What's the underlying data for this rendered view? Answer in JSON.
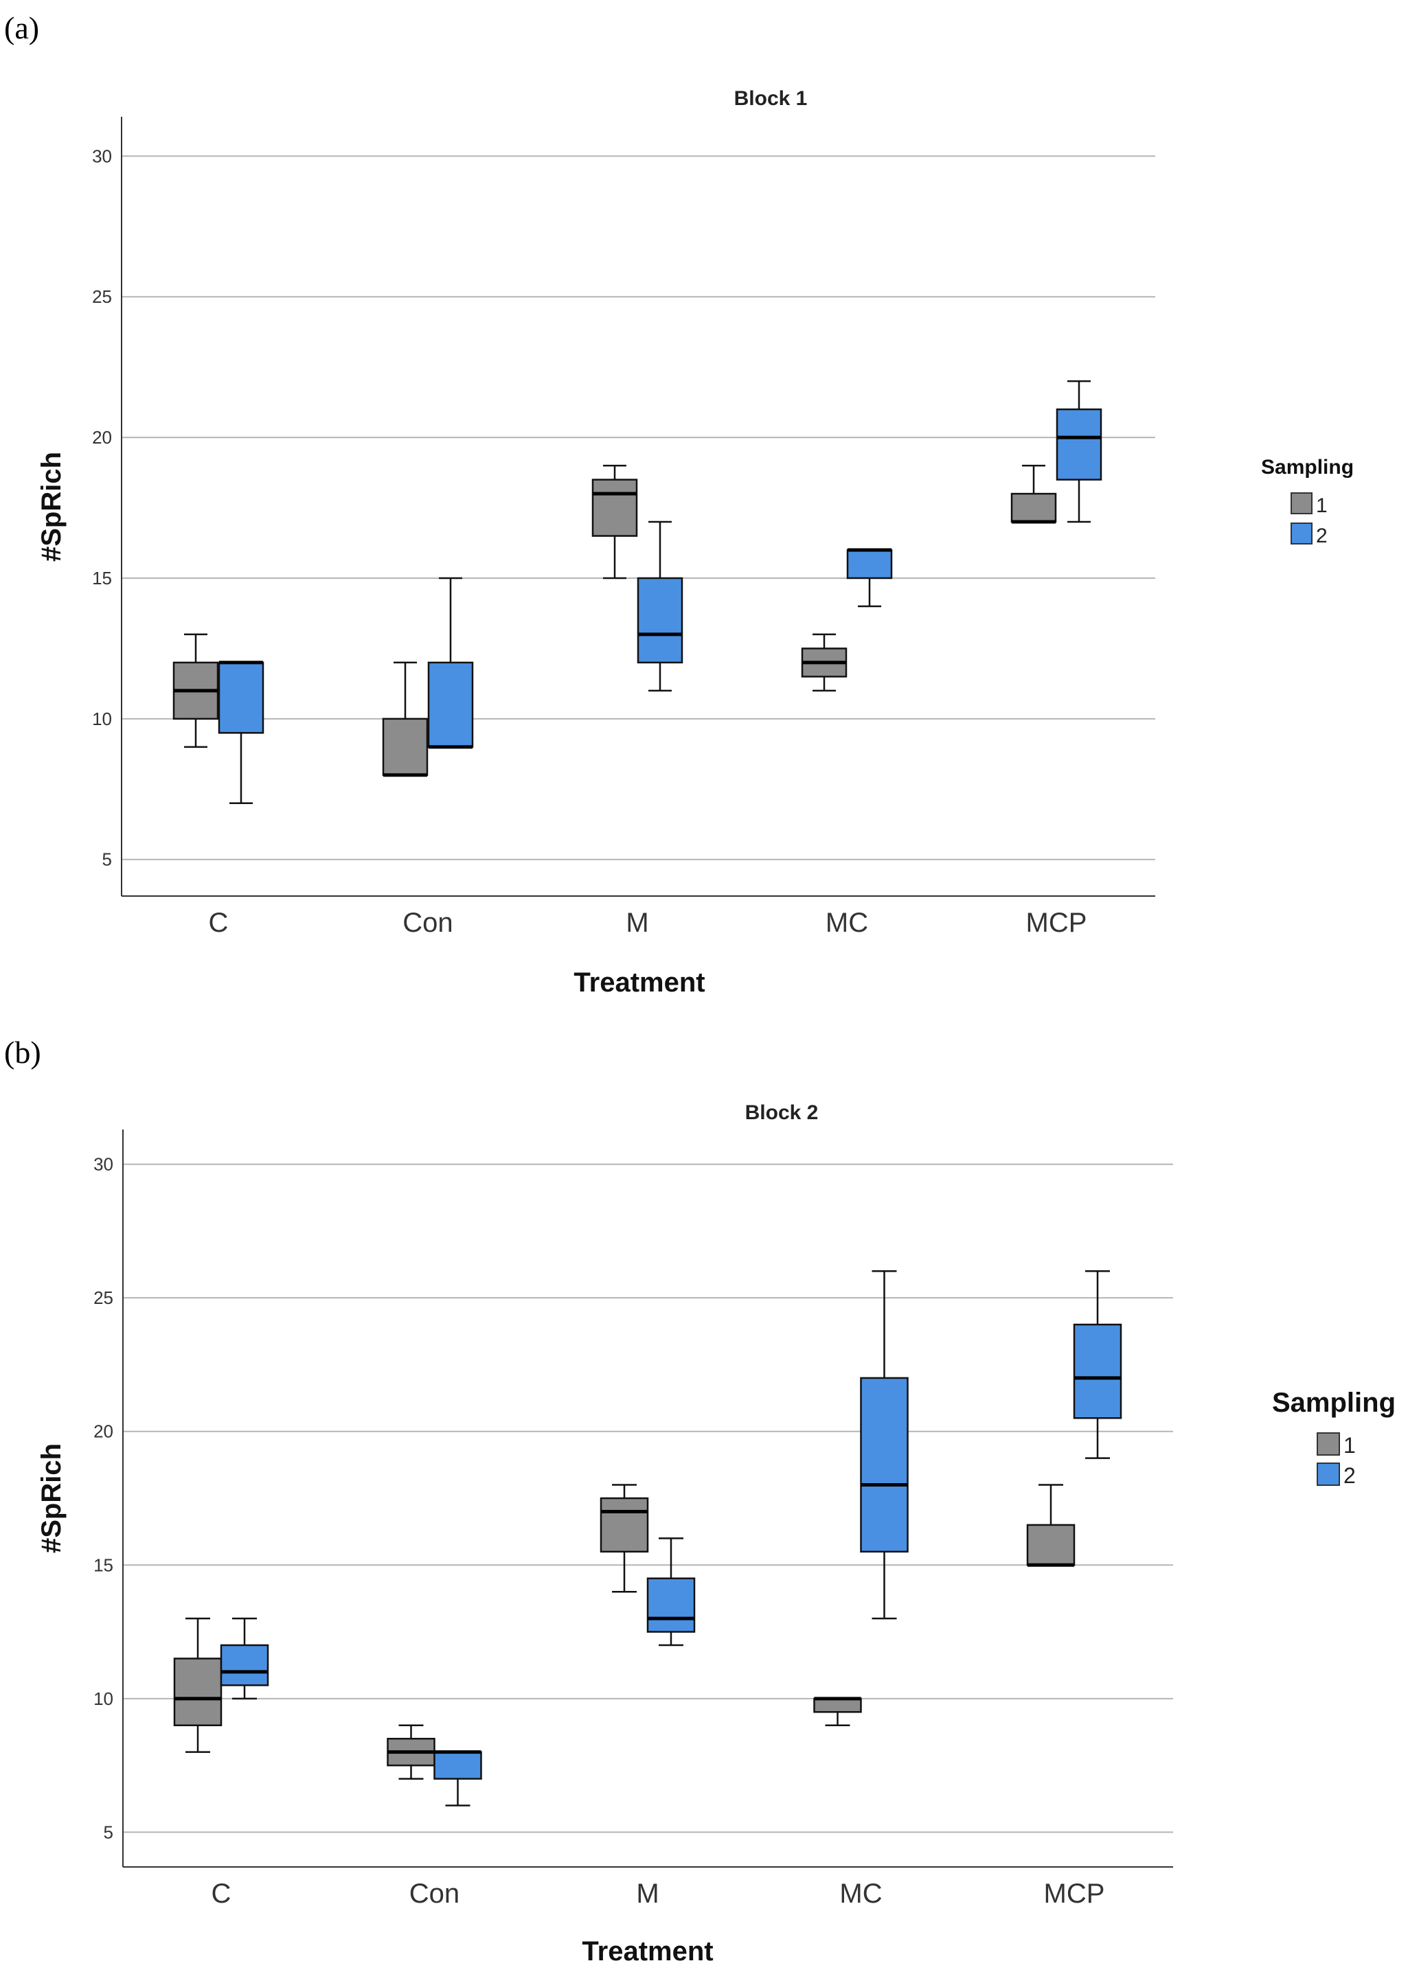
{
  "panels": [
    "(a)",
    "(b)"
  ],
  "chart_data": [
    {
      "type": "box",
      "title": "Block 1",
      "xlabel": "Treatment",
      "ylabel": "#SpRich",
      "categories": [
        "C",
        "Con",
        "M",
        "MC",
        "MCP"
      ],
      "ylim": [
        3.7,
        31.4
      ],
      "yticks": [
        5,
        10,
        15,
        20,
        25,
        30
      ],
      "grid": true,
      "legend": {
        "title": "Sampling",
        "entries": [
          "1",
          "2"
        ],
        "position": "right"
      },
      "colors": {
        "1": "#8c8c8c",
        "2": "#4a90e2"
      },
      "series": [
        {
          "name": "1",
          "boxes": [
            {
              "min": 9,
              "q1": 10,
              "median": 11,
              "q3": 12,
              "max": 13
            },
            {
              "min": 8,
              "q1": 8,
              "median": 8,
              "q3": 10,
              "max": 12
            },
            {
              "min": 15,
              "q1": 16.5,
              "median": 18,
              "q3": 18.5,
              "max": 19
            },
            {
              "min": 11,
              "q1": 11.5,
              "median": 12,
              "q3": 12.5,
              "max": 13
            },
            {
              "min": 17,
              "q1": 17,
              "median": 17,
              "q3": 18,
              "max": 19
            }
          ]
        },
        {
          "name": "2",
          "boxes": [
            {
              "min": 7,
              "q1": 9.5,
              "median": 12,
              "q3": 12,
              "max": 12
            },
            {
              "min": 9,
              "q1": 9,
              "median": 9,
              "q3": 12,
              "max": 15
            },
            {
              "min": 11,
              "q1": 12,
              "median": 13,
              "q3": 15,
              "max": 17
            },
            {
              "min": 14,
              "q1": 15,
              "median": 16,
              "q3": 16,
              "max": 16
            },
            {
              "min": 17,
              "q1": 18.5,
              "median": 20,
              "q3": 21,
              "max": 22
            }
          ]
        }
      ]
    },
    {
      "type": "box",
      "title": "Block 2",
      "xlabel": "Treatment",
      "ylabel": "#SpRich",
      "categories": [
        "C",
        "Con",
        "M",
        "MC",
        "MCP"
      ],
      "ylim": [
        3.7,
        31.3
      ],
      "yticks": [
        5,
        10,
        15,
        20,
        25,
        30
      ],
      "grid": true,
      "legend": {
        "title": "Sampling",
        "entries": [
          "1",
          "2"
        ],
        "position": "right"
      },
      "colors": {
        "1": "#8c8c8c",
        "2": "#4a90e2"
      },
      "series": [
        {
          "name": "1",
          "boxes": [
            {
              "min": 8,
              "q1": 9,
              "median": 10,
              "q3": 11.5,
              "max": 13
            },
            {
              "min": 7,
              "q1": 7.5,
              "median": 8,
              "q3": 8.5,
              "max": 9
            },
            {
              "min": 14,
              "q1": 15.5,
              "median": 17,
              "q3": 17.5,
              "max": 18
            },
            {
              "min": 9,
              "q1": 9.5,
              "median": 10,
              "q3": 10,
              "max": 10
            },
            {
              "min": 15,
              "q1": 15,
              "median": 15,
              "q3": 16.5,
              "max": 18
            }
          ]
        },
        {
          "name": "2",
          "boxes": [
            {
              "min": 10,
              "q1": 10.5,
              "median": 11,
              "q3": 12,
              "max": 13
            },
            {
              "min": 6,
              "q1": 7,
              "median": 8,
              "q3": 8,
              "max": 8
            },
            {
              "min": 12,
              "q1": 12.5,
              "median": 13,
              "q3": 14.5,
              "max": 16
            },
            {
              "min": 13,
              "q1": 15.5,
              "median": 18,
              "q3": 22,
              "max": 26
            },
            {
              "min": 19,
              "q1": 20.5,
              "median": 22,
              "q3": 24,
              "max": 26
            }
          ]
        }
      ]
    }
  ]
}
